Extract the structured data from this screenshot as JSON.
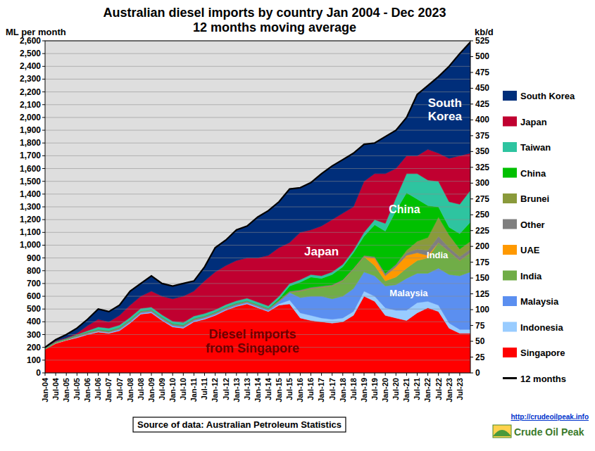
{
  "chart_data": {
    "type": "area",
    "stacked": true,
    "grid": true,
    "legend": "right",
    "title": "Australian diesel imports by country Jan 2004 - Dec 2023",
    "subtitle": "12 months moving average",
    "ylabel": "ML per month",
    "y2label": "kb/d",
    "source": "Source of data: Australian Petroleum Statistics",
    "url": "http://crudeoilpeak.info",
    "logo_text": "Crude Oil Peak",
    "categories": [
      "Jan-04",
      "Jul-04",
      "Jan-05",
      "Jul-05",
      "Jan-06",
      "Jul-06",
      "Jan-07",
      "Jul-07",
      "Jan-08",
      "Jul-08",
      "Jan-09",
      "Jul-09",
      "Jan-10",
      "Jul-10",
      "Jan-11",
      "Jul-11",
      "Jan-12",
      "Jul-12",
      "Jan-13",
      "Jul-13",
      "Jan-14",
      "Jul-14",
      "Jan-15",
      "Jul-15",
      "Jan-16",
      "Jul-16",
      "Jan-17",
      "Jul-17",
      "Jan-18",
      "Jul-18",
      "Jan-19",
      "Jul-19",
      "Jan-20",
      "Jul-20",
      "Jan-21",
      "Jul-21",
      "Jan-22",
      "Jul-22",
      "Jan-23",
      "Jul-23",
      null
    ],
    "ylim": [
      0,
      2600
    ],
    "yticks": [
      0,
      100,
      200,
      300,
      400,
      500,
      600,
      700,
      800,
      900,
      {
        "value": 1000,
        "label": "1,000"
      },
      {
        "value": 1100,
        "label": "1,100"
      },
      {
        "value": 1200,
        "label": "1,200"
      },
      {
        "value": 1300,
        "label": "1,300"
      },
      {
        "value": 1400,
        "label": "1,400"
      },
      {
        "value": 1500,
        "label": "1,500"
      },
      {
        "value": 1600,
        "label": "1,600"
      },
      {
        "value": 1700,
        "label": "1,700"
      },
      {
        "value": 1800,
        "label": "1,800"
      },
      {
        "value": 1900,
        "label": "1,900"
      },
      {
        "value": 2000,
        "label": "2,000"
      },
      {
        "value": 2100,
        "label": "2,100"
      },
      {
        "value": 2200,
        "label": "2,200"
      },
      {
        "value": 2300,
        "label": "2,300"
      },
      {
        "value": 2400,
        "label": "2,400"
      },
      {
        "value": 2500,
        "label": "2,500"
      },
      {
        "value": 2600,
        "label": "2,600"
      }
    ],
    "y2lim": [
      0,
      525
    ],
    "y2ticks": [
      0,
      25,
      50,
      75,
      100,
      125,
      150,
      175,
      200,
      225,
      250,
      275,
      300,
      325,
      350,
      375,
      400,
      425,
      450,
      475,
      500,
      525
    ],
    "series": [
      {
        "name": "Singapore",
        "color": "#ff0000",
        "values": [
          185,
          230,
          255,
          275,
          300,
          320,
          310,
          330,
          390,
          460,
          470,
          410,
          360,
          350,
          400,
          420,
          450,
          490,
          520,
          540,
          510,
          480,
          530,
          540,
          430,
          410,
          400,
          390,
          400,
          450,
          600,
          560,
          450,
          430,
          410,
          470,
          510,
          480,
          350,
          310,
          310
        ]
      },
      {
        "name": "Indonesia",
        "color": "#99ccff",
        "values": [
          0,
          5,
          5,
          5,
          5,
          5,
          5,
          5,
          5,
          5,
          5,
          5,
          5,
          5,
          5,
          5,
          5,
          5,
          5,
          5,
          5,
          5,
          10,
          30,
          40,
          40,
          30,
          30,
          30,
          30,
          40,
          40,
          60,
          60,
          80,
          80,
          50,
          50,
          40,
          30,
          30
        ]
      },
      {
        "name": "Malaysia",
        "color": "#5b8ff0",
        "values": [
          0,
          0,
          0,
          5,
          5,
          5,
          5,
          10,
          10,
          10,
          10,
          10,
          10,
          10,
          10,
          10,
          10,
          10,
          10,
          10,
          10,
          10,
          20,
          60,
          120,
          150,
          170,
          160,
          170,
          180,
          150,
          160,
          170,
          200,
          250,
          230,
          220,
          290,
          380,
          420,
          450
        ]
      },
      {
        "name": "India",
        "color": "#70ad47",
        "values": [
          0,
          0,
          0,
          0,
          0,
          0,
          0,
          0,
          0,
          0,
          0,
          0,
          0,
          0,
          0,
          0,
          0,
          0,
          0,
          0,
          0,
          0,
          0,
          0,
          50,
          60,
          70,
          100,
          120,
          150,
          120,
          80,
          40,
          60,
          80,
          100,
          120,
          200,
          180,
          120,
          150
        ]
      },
      {
        "name": "UAE",
        "color": "#ff9900",
        "values": [
          0,
          0,
          0,
          0,
          0,
          0,
          0,
          0,
          0,
          0,
          0,
          0,
          0,
          0,
          0,
          0,
          0,
          0,
          0,
          0,
          0,
          0,
          0,
          0,
          0,
          0,
          0,
          0,
          0,
          0,
          0,
          60,
          40,
          80,
          100,
          60,
          20,
          0,
          0,
          0,
          0
        ]
      },
      {
        "name": "Other",
        "color": "#7f7f7f",
        "values": [
          5,
          5,
          5,
          10,
          10,
          10,
          10,
          10,
          10,
          10,
          10,
          10,
          10,
          10,
          10,
          10,
          10,
          10,
          10,
          10,
          10,
          10,
          10,
          10,
          10,
          10,
          10,
          10,
          10,
          10,
          10,
          10,
          20,
          20,
          20,
          30,
          40,
          50,
          30,
          30,
          30
        ]
      },
      {
        "name": "Brunei",
        "color": "#8a9a3b",
        "values": [
          0,
          0,
          0,
          0,
          0,
          0,
          0,
          0,
          0,
          0,
          0,
          0,
          0,
          0,
          0,
          0,
          0,
          0,
          0,
          0,
          0,
          0,
          0,
          0,
          0,
          0,
          0,
          0,
          0,
          0,
          0,
          0,
          0,
          0,
          20,
          60,
          100,
          150,
          100,
          60,
          60
        ]
      },
      {
        "name": "China",
        "color": "#00c000",
        "values": [
          0,
          0,
          0,
          0,
          0,
          0,
          0,
          0,
          0,
          0,
          0,
          0,
          0,
          0,
          0,
          0,
          0,
          0,
          0,
          0,
          0,
          0,
          10,
          40,
          60,
          80,
          60,
          80,
          100,
          120,
          150,
          250,
          330,
          420,
          450,
          330,
          250,
          80,
          60,
          120,
          150
        ]
      },
      {
        "name": "Taiwan",
        "color": "#2ec4a0",
        "values": [
          5,
          5,
          5,
          5,
          10,
          20,
          20,
          20,
          20,
          20,
          20,
          20,
          20,
          20,
          20,
          20,
          20,
          20,
          20,
          20,
          20,
          20,
          20,
          20,
          20,
          20,
          20,
          20,
          20,
          20,
          30,
          40,
          60,
          100,
          150,
          200,
          200,
          200,
          200,
          230,
          250
        ]
      },
      {
        "name": "Japan",
        "color": "#c00030",
        "values": [
          5,
          5,
          5,
          10,
          40,
          60,
          50,
          75,
          95,
          95,
          125,
          145,
          175,
          205,
          195,
          255,
          295,
          305,
          315,
          315,
          345,
          395,
          380,
          320,
          370,
          350,
          390,
          410,
          400,
          340,
          400,
          360,
          390,
          230,
          140,
          140,
          240,
          220,
          340,
          380,
          290
        ]
      },
      {
        "name": "South Korea",
        "color": "#002e7a",
        "values": [
          0,
          10,
          25,
          40,
          50,
          80,
          80,
          80,
          110,
          100,
          120,
          100,
          100,
          100,
          80,
          110,
          190,
          200,
          240,
          250,
          320,
          350,
          360,
          420,
          350,
          370,
          410,
          420,
          420,
          420,
          290,
          240,
          290,
          300,
          300,
          480,
          500,
          600,
          720,
          800,
          870
        ]
      },
      {
        "name": "12 months",
        "type": "line",
        "color": "#000000",
        "values": [
          200,
          260,
          300,
          350,
          420,
          500,
          480,
          530,
          640,
          700,
          760,
          700,
          680,
          700,
          720,
          830,
          980,
          1040,
          1120,
          1150,
          1220,
          1270,
          1340,
          1440,
          1450,
          1490,
          1560,
          1620,
          1670,
          1720,
          1790,
          1800,
          1850,
          1900,
          2000,
          2180,
          2250,
          2320,
          2400,
          2500,
          2590
        ]
      }
    ],
    "annotations": [
      {
        "text": "South Korea"
      },
      {
        "text": "Japan"
      },
      {
        "text": "China"
      },
      {
        "text": "India"
      },
      {
        "text": "Malaysia"
      },
      {
        "text": "Diesel imports from Singapore"
      }
    ]
  }
}
